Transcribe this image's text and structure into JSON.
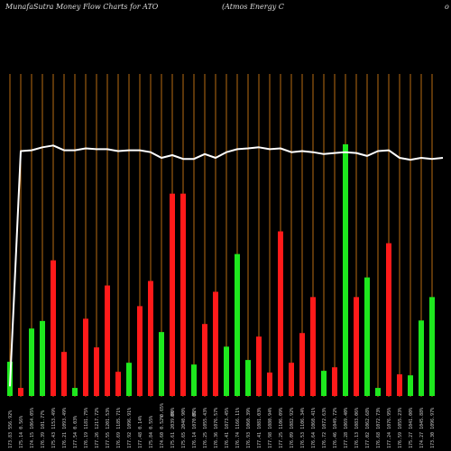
{
  "header": {
    "site": "MunafaSutra  Money Flow  Charts for ATO",
    "company": "(Atmos Energy C",
    "edge": "o"
  },
  "colors": {
    "background": "#000000",
    "grid": "#b86b12",
    "up": "#1ee81e",
    "down": "#ff1a1a",
    "line": "#ffffff",
    "label": "#cfcfcf"
  },
  "chart_data": {
    "type": "bar",
    "title": "MunafaSutra  Money Flow  Charts for ATO",
    "subtitle": "(Atmos Energy C",
    "value_scale": [
      0,
      100
    ],
    "line_scale": [
      0,
      100
    ],
    "bars": [
      {
        "label": "173.83 556.92%",
        "value": 13.6,
        "dir": "up"
      },
      {
        "label": "175.14 0.56%",
        "value": 3.2,
        "dir": "down"
      },
      {
        "label": "174.15 1064.05%",
        "value": 26.8,
        "dir": "up"
      },
      {
        "label": "176.39 101.77%",
        "value": 29.8,
        "dir": "up"
      },
      {
        "label": "175.43 1153.49%",
        "value": 53.9,
        "dir": "down"
      },
      {
        "label": "176.21 1093.49%",
        "value": 17.5,
        "dir": "down"
      },
      {
        "label": "177.54 0.03%",
        "value": 3.2,
        "dir": "up"
      },
      {
        "label": "176.19 1181.75%",
        "value": 30.7,
        "dir": "down"
      },
      {
        "label": "177.26 1217.72%",
        "value": 19.3,
        "dir": "down"
      },
      {
        "label": "177.55 1201.53%",
        "value": 43.9,
        "dir": "down"
      },
      {
        "label": "176.69 1185.71%",
        "value": 9.6,
        "dir": "down"
      },
      {
        "label": "177.92 1096.91%",
        "value": 13.2,
        "dir": "up"
      },
      {
        "label": "177.48 0.14%",
        "value": 35.7,
        "dir": "down"
      },
      {
        "label": "175.84 0.55%",
        "value": 45.7,
        "dir": "down"
      },
      {
        "label": "174.60 0.52%",
        "value": 25.4,
        "dir": "up"
      },
      {
        "label": "175.61 2039.60%",
        "value": 80.4,
        "dir": "down"
      },
      {
        "label": "175.65 2040.90%",
        "value": 80.4,
        "dir": "down"
      },
      {
        "label": "176.14 1070.82%",
        "value": 12.5,
        "dir": "up"
      },
      {
        "label": "176.25 1055.43%",
        "value": 28.6,
        "dir": "down"
      },
      {
        "label": "176.36 1076.57%",
        "value": 41.4,
        "dir": "down"
      },
      {
        "label": "176.41 1073.45%",
        "value": 19.6,
        "dir": "up"
      },
      {
        "label": "176.74 1166.11%",
        "value": 56.4,
        "dir": "up"
      },
      {
        "label": "176.93 1060.39%",
        "value": 14.3,
        "dir": "up"
      },
      {
        "label": "177.41 1081.03%",
        "value": 23.6,
        "dir": "down"
      },
      {
        "label": "177.98 1080.94%",
        "value": 9.3,
        "dir": "down"
      },
      {
        "label": "177.25 1106.09%",
        "value": 65.4,
        "dir": "down"
      },
      {
        "label": "176.09 1082.92%",
        "value": 13.2,
        "dir": "down"
      },
      {
        "label": "176.53 1106.34%",
        "value": 25.0,
        "dir": "down"
      },
      {
        "label": "176.64 1060.41%",
        "value": 39.3,
        "dir": "down"
      },
      {
        "label": "176.72 1072.63%",
        "value": 10.0,
        "dir": "up"
      },
      {
        "label": "176.46 1049.72%",
        "value": 11.4,
        "dir": "down"
      },
      {
        "label": "177.28 1069.40%",
        "value": 100.0,
        "dir": "up"
      },
      {
        "label": "176.13 1083.06%",
        "value": 39.3,
        "dir": "down"
      },
      {
        "label": "177.02 1062.68%",
        "value": 47.1,
        "dir": "up"
      },
      {
        "label": "176.68 1072.73%",
        "value": 3.2,
        "dir": "up"
      },
      {
        "label": "177.24 1076.95%",
        "value": 60.7,
        "dir": "down"
      },
      {
        "label": "176.59 1055.23%",
        "value": 8.6,
        "dir": "down"
      },
      {
        "label": "175.27 1041.00%",
        "value": 8.2,
        "dir": "up"
      },
      {
        "label": "174.27 1045.88%",
        "value": 30.0,
        "dir": "up"
      },
      {
        "label": "173.30 1096.97%",
        "value": 39.3,
        "dir": "up"
      }
    ],
    "price_line": [
      3.6,
      91.1,
      91.4,
      92.5,
      93.2,
      91.4,
      91.4,
      92.1,
      91.8,
      91.8,
      91.1,
      91.4,
      91.4,
      90.7,
      88.6,
      89.6,
      88.2,
      88.2,
      90.0,
      88.6,
      90.7,
      91.8,
      92.1,
      92.5,
      91.8,
      92.1,
      90.7,
      91.1,
      90.7,
      90.0,
      90.4,
      90.7,
      90.4,
      89.3,
      91.1,
      91.4,
      88.6,
      87.9,
      88.6,
      88.2,
      88.6
    ],
    "markers": [
      {
        "bar": 14,
        "text": "0.65%"
      },
      {
        "bar": 15,
        "text": "0%"
      },
      {
        "bar": 17,
        "text": "0%"
      }
    ]
  }
}
